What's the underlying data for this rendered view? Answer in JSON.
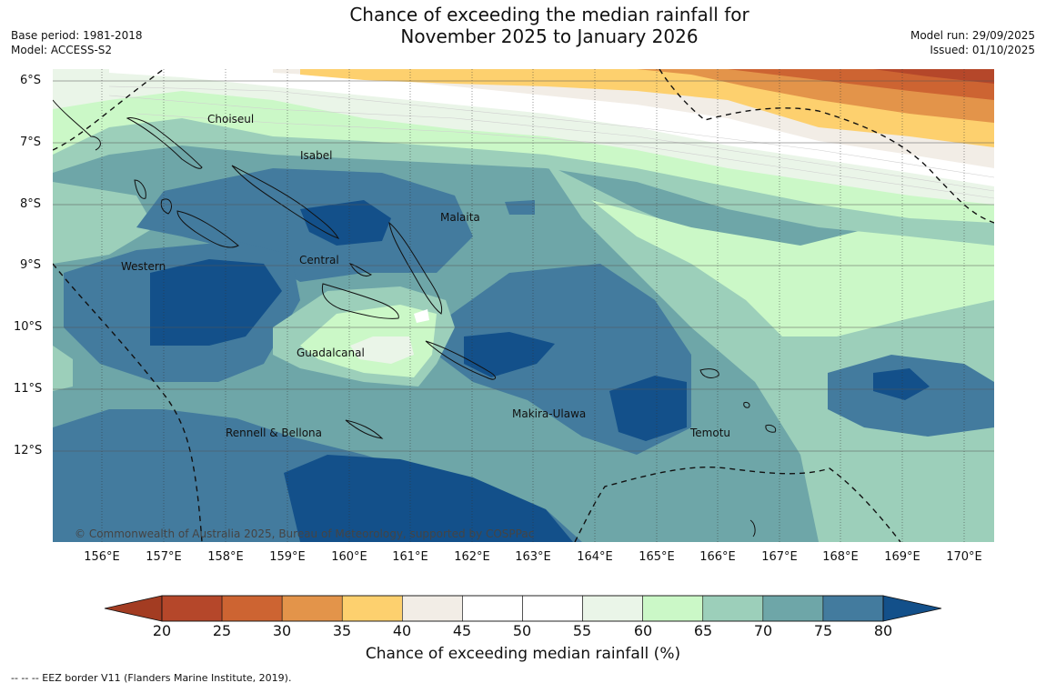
{
  "title": {
    "line1": "Chance of exceeding the median rainfall for",
    "line2": "November 2025 to January 2026"
  },
  "meta_left": {
    "base_period": "Base period: 1981-2018",
    "model": "Model: ACCESS-S2"
  },
  "meta_right": {
    "model_run": "Model run: 29/09/2025",
    "issued": "Issued: 01/10/2025"
  },
  "lat_labels": [
    "6°S",
    "7°S",
    "8°S",
    "9°S",
    "10°S",
    "11°S",
    "12°S"
  ],
  "lon_labels": [
    "156°E",
    "157°E",
    "158°E",
    "159°E",
    "160°E",
    "161°E",
    "162°E",
    "163°E",
    "164°E",
    "165°E",
    "166°E",
    "167°E",
    "168°E",
    "169°E",
    "170°E"
  ],
  "places": {
    "choiseul": "Choiseul",
    "isabel": "Isabel",
    "malaita": "Malaita",
    "western": "Western",
    "central": "Central",
    "guadalcanal": "Guadalcanal",
    "makira": "Makira-Ulawa",
    "rennell": "Rennell & Bellona",
    "temotu": "Temotu"
  },
  "copyright": "© Commonwealth of Australia 2025, Bureau of Meteorology, supported by COSPPac",
  "colorbar": {
    "ticks": [
      "20",
      "25",
      "30",
      "35",
      "40",
      "45",
      "50",
      "55",
      "60",
      "65",
      "70",
      "75",
      "80"
    ],
    "colors": [
      "#b5472a",
      "#cd6432",
      "#e3944a",
      "#fdd06e",
      "#f2ede6",
      "#ffffff",
      "#ffffff",
      "#eaf5e8",
      "#cbf8c7",
      "#9ccfba",
      "#6ea6a8",
      "#437b9e"
    ],
    "below_color": "#a33c22",
    "above_color": "#13508a",
    "label": "Chance of exceeding median rainfall (%)"
  },
  "eez_note": "--  --  -- EEZ border V11 (Flanders Marine Institute, 2019)."
}
